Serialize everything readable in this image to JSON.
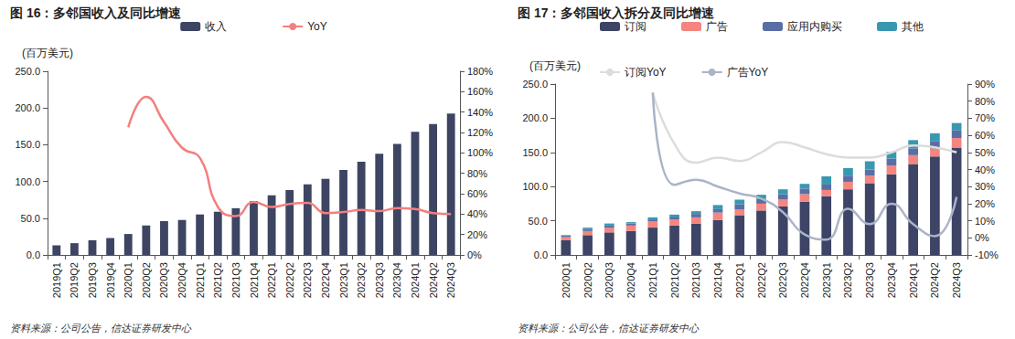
{
  "chart_data": [
    {
      "type": "bar",
      "title": "图 16：多邻国收入及同比增速",
      "ylabel": "(百万美元)",
      "source": "资料来源：公司公告，信达证券研发中心",
      "categories": [
        "2019Q1",
        "2019Q2",
        "2019Q3",
        "2019Q4",
        "2020Q1",
        "2020Q2",
        "2020Q3",
        "2020Q4",
        "2021Q1",
        "2021Q2",
        "2021Q3",
        "2021Q4",
        "2022Q1",
        "2022Q2",
        "2022Q3",
        "2022Q4",
        "2023Q1",
        "2023Q2",
        "2023Q3",
        "2023Q4",
        "2024Q1",
        "2024Q2",
        "2024Q3"
      ],
      "series": [
        {
          "name": "收入",
          "type": "bar",
          "color": "#3d4563",
          "values": [
            13,
            16,
            20,
            23,
            28.5,
            40.1,
            46.1,
            47.6,
            55.1,
            58.8,
            63.6,
            73.4,
            81.2,
            88.3,
            96.1,
            103.6,
            115.7,
            126.8,
            137.6,
            151.0,
            167.6,
            178.3,
            192.6
          ]
        },
        {
          "name": "YoY",
          "type": "line",
          "axis": "y2",
          "color": "#f47f7f",
          "values": [
            null,
            null,
            null,
            null,
            125,
            155,
            130,
            105,
            95,
            47,
            38,
            52,
            47,
            50,
            51,
            41,
            42,
            44,
            43,
            46,
            45,
            41,
            40
          ]
        }
      ],
      "ylim": [
        0,
        250
      ],
      "yticks": [
        {
          "value": 0,
          "label": "0.0"
        },
        {
          "value": 50,
          "label": "50.0"
        },
        {
          "value": 100,
          "label": "100.0"
        },
        {
          "value": 150,
          "label": "150.0"
        },
        {
          "value": 200,
          "label": "200.0"
        },
        {
          "value": 250,
          "label": "250.0"
        }
      ],
      "y2lim": [
        0,
        180
      ],
      "y2ticks": [
        {
          "value": 0,
          "label": "0%"
        },
        {
          "value": 20,
          "label": "20%"
        },
        {
          "value": 40,
          "label": "40%"
        },
        {
          "value": 60,
          "label": "60%"
        },
        {
          "value": 80,
          "label": "80%"
        },
        {
          "value": 100,
          "label": "100%"
        },
        {
          "value": 120,
          "label": "120%"
        },
        {
          "value": 140,
          "label": "140%"
        },
        {
          "value": 160,
          "label": "160%"
        },
        {
          "value": 180,
          "label": "180%"
        }
      ],
      "grid": false,
      "legend": "top",
      "stacked": false
    },
    {
      "type": "bar",
      "title": "图 17：多邻国收入拆分及同比增速",
      "ylabel": "(百万美元)",
      "source": "资料来源：公司公告，信达证券研发中心",
      "categories": [
        "2020Q1",
        "2020Q2",
        "2020Q3",
        "2020Q4",
        "2021Q1",
        "2021Q2",
        "2021Q3",
        "2021Q4",
        "2022Q1",
        "2022Q2",
        "2022Q3",
        "2022Q4",
        "2023Q1",
        "2023Q2",
        "2023Q3",
        "2023Q4",
        "2024Q1",
        "2024Q2",
        "2024Q3"
      ],
      "series": [
        {
          "name": "订阅",
          "type": "bar",
          "color": "#3d4466",
          "values": [
            22,
            29,
            33,
            35,
            40,
            43,
            46,
            51,
            58,
            65,
            71,
            78,
            86,
            96,
            105,
            118,
            133,
            144,
            157
          ]
        },
        {
          "name": "广告",
          "type": "bar",
          "color": "#f4857f",
          "values": [
            4,
            6,
            7,
            8,
            9,
            9,
            9,
            11,
            9,
            10,
            10,
            11,
            9,
            11,
            11,
            13,
            13,
            12,
            14
          ]
        },
        {
          "name": "应用内购买",
          "type": "bar",
          "color": "#5a6ea6",
          "values": [
            2,
            3,
            3,
            3,
            3,
            4,
            5,
            5,
            7,
            7,
            8,
            8,
            8,
            9,
            9,
            10,
            10,
            10,
            11
          ]
        },
        {
          "name": "其他",
          "type": "bar",
          "color": "#3a97b0",
          "values": [
            1,
            2,
            3,
            2,
            3,
            3,
            4,
            6,
            7,
            6,
            7,
            7,
            12,
            11,
            12,
            10,
            12,
            12,
            11
          ]
        },
        {
          "name": "订阅YoY",
          "type": "line",
          "axis": "y2",
          "color": "#dcdcdc",
          "values": [
            null,
            null,
            null,
            null,
            85,
            55,
            44,
            47,
            45,
            50,
            56,
            53,
            49,
            47,
            47,
            50,
            54,
            53,
            50
          ]
        },
        {
          "name": "广告YoY",
          "type": "line",
          "axis": "y2",
          "color": "#aab4c8",
          "values": [
            null,
            null,
            null,
            null,
            85,
            31,
            34,
            30,
            26,
            23,
            15,
            2,
            -1,
            17,
            8,
            20,
            8,
            1,
            24
          ]
        }
      ],
      "ylim": [
        0,
        250
      ],
      "yticks": [
        {
          "value": 0,
          "label": "0.0"
        },
        {
          "value": 50,
          "label": "50.0"
        },
        {
          "value": 100,
          "label": "100.0"
        },
        {
          "value": 150,
          "label": "150.0"
        },
        {
          "value": 200,
          "label": "200.0"
        },
        {
          "value": 250,
          "label": "250.0"
        }
      ],
      "y2lim": [
        -10,
        90
      ],
      "y2ticks": [
        {
          "value": -10,
          "label": "-10%"
        },
        {
          "value": 0,
          "label": "0%"
        },
        {
          "value": 10,
          "label": "10%"
        },
        {
          "value": 20,
          "label": "20%"
        },
        {
          "value": 30,
          "label": "30%"
        },
        {
          "value": 40,
          "label": "40%"
        },
        {
          "value": 50,
          "label": "50%"
        },
        {
          "value": 60,
          "label": "60%"
        },
        {
          "value": 70,
          "label": "70%"
        },
        {
          "value": 80,
          "label": "80%"
        },
        {
          "value": 90,
          "label": "90%"
        }
      ],
      "grid": false,
      "legend": "top",
      "stacked": true
    }
  ]
}
